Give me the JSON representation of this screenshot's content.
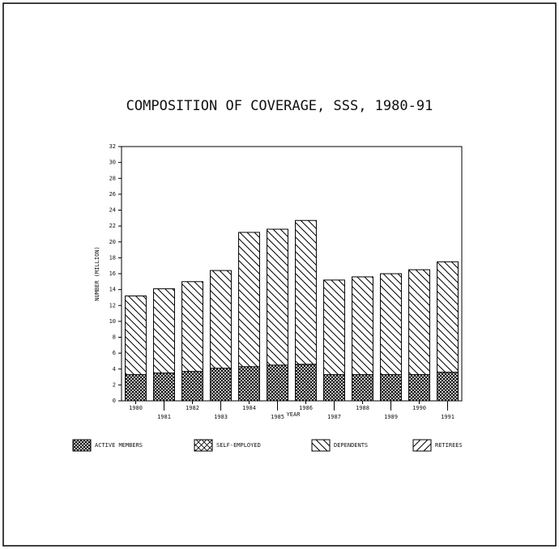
{
  "chart_data": {
    "type": "stacked_bar",
    "title": "COMPOSITION OF COVERAGE, SSS, 1980-91",
    "xlabel": "YEAR",
    "ylabel": "NUMBER (MILLION)",
    "categories": [
      "1980",
      "1981",
      "1982",
      "1983",
      "1984",
      "1985",
      "1986",
      "1987",
      "1988",
      "1989",
      "1990",
      "1991"
    ],
    "series": [
      {
        "name": "ACTIVE MEMBERS",
        "color": "#000000",
        "pattern": "crosshatch",
        "values": [
          3.3,
          3.5,
          3.7,
          4.1,
          4.3,
          4.5,
          4.6,
          3.3,
          3.3,
          3.3,
          3.3,
          3.6
        ]
      },
      {
        "name": "SELF-EMPLOYED",
        "color": "#000000",
        "pattern": "cross",
        "values": [
          0,
          0,
          0,
          0,
          0,
          0,
          0,
          0,
          0,
          0,
          0,
          0
        ]
      },
      {
        "name": "DEPENDENTS",
        "color": "#000000",
        "pattern": "backslash",
        "values": [
          9.9,
          10.6,
          11.3,
          12.3,
          16.9,
          17.1,
          18.1,
          11.9,
          12.3,
          12.7,
          13.2,
          13.9
        ]
      },
      {
        "name": "RETIREES",
        "color": "#000000",
        "pattern": "slash",
        "values": [
          0,
          0,
          0,
          0,
          0,
          0,
          0,
          0,
          0,
          0,
          0,
          0
        ]
      }
    ],
    "ylim": [
      0,
      32
    ],
    "yticks": [
      0,
      2,
      4,
      6,
      8,
      10,
      12,
      14,
      16,
      18,
      20,
      22,
      24,
      26,
      28,
      30,
      32
    ],
    "legend": "bottom"
  }
}
